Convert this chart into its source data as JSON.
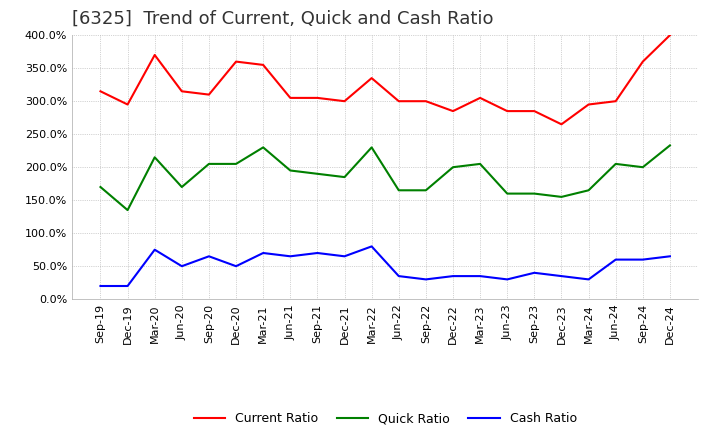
{
  "title": "[6325]  Trend of Current, Quick and Cash Ratio",
  "x_labels": [
    "Sep-19",
    "Dec-19",
    "Mar-20",
    "Jun-20",
    "Sep-20",
    "Dec-20",
    "Mar-21",
    "Jun-21",
    "Sep-21",
    "Dec-21",
    "Mar-22",
    "Jun-22",
    "Sep-22",
    "Dec-22",
    "Mar-23",
    "Jun-23",
    "Sep-23",
    "Dec-23",
    "Mar-24",
    "Jun-24",
    "Sep-24",
    "Dec-24"
  ],
  "current_ratio": [
    315,
    295,
    370,
    315,
    310,
    360,
    355,
    305,
    305,
    300,
    335,
    300,
    300,
    285,
    305,
    285,
    285,
    265,
    295,
    300,
    360,
    400
  ],
  "quick_ratio": [
    170,
    135,
    215,
    170,
    205,
    205,
    230,
    195,
    190,
    185,
    230,
    165,
    165,
    200,
    205,
    160,
    160,
    155,
    165,
    205,
    200,
    233
  ],
  "cash_ratio": [
    20,
    20,
    75,
    50,
    65,
    50,
    70,
    65,
    70,
    65,
    80,
    35,
    30,
    35,
    35,
    30,
    40,
    35,
    30,
    60,
    60,
    65
  ],
  "current_color": "#ff0000",
  "quick_color": "#008000",
  "cash_color": "#0000ff",
  "ylim": [
    0,
    400
  ],
  "yticks": [
    0,
    50,
    100,
    150,
    200,
    250,
    300,
    350,
    400
  ],
  "background_color": "#ffffff",
  "grid_color": "#aaaaaa",
  "title_fontsize": 13,
  "axis_fontsize": 8,
  "legend_fontsize": 9
}
